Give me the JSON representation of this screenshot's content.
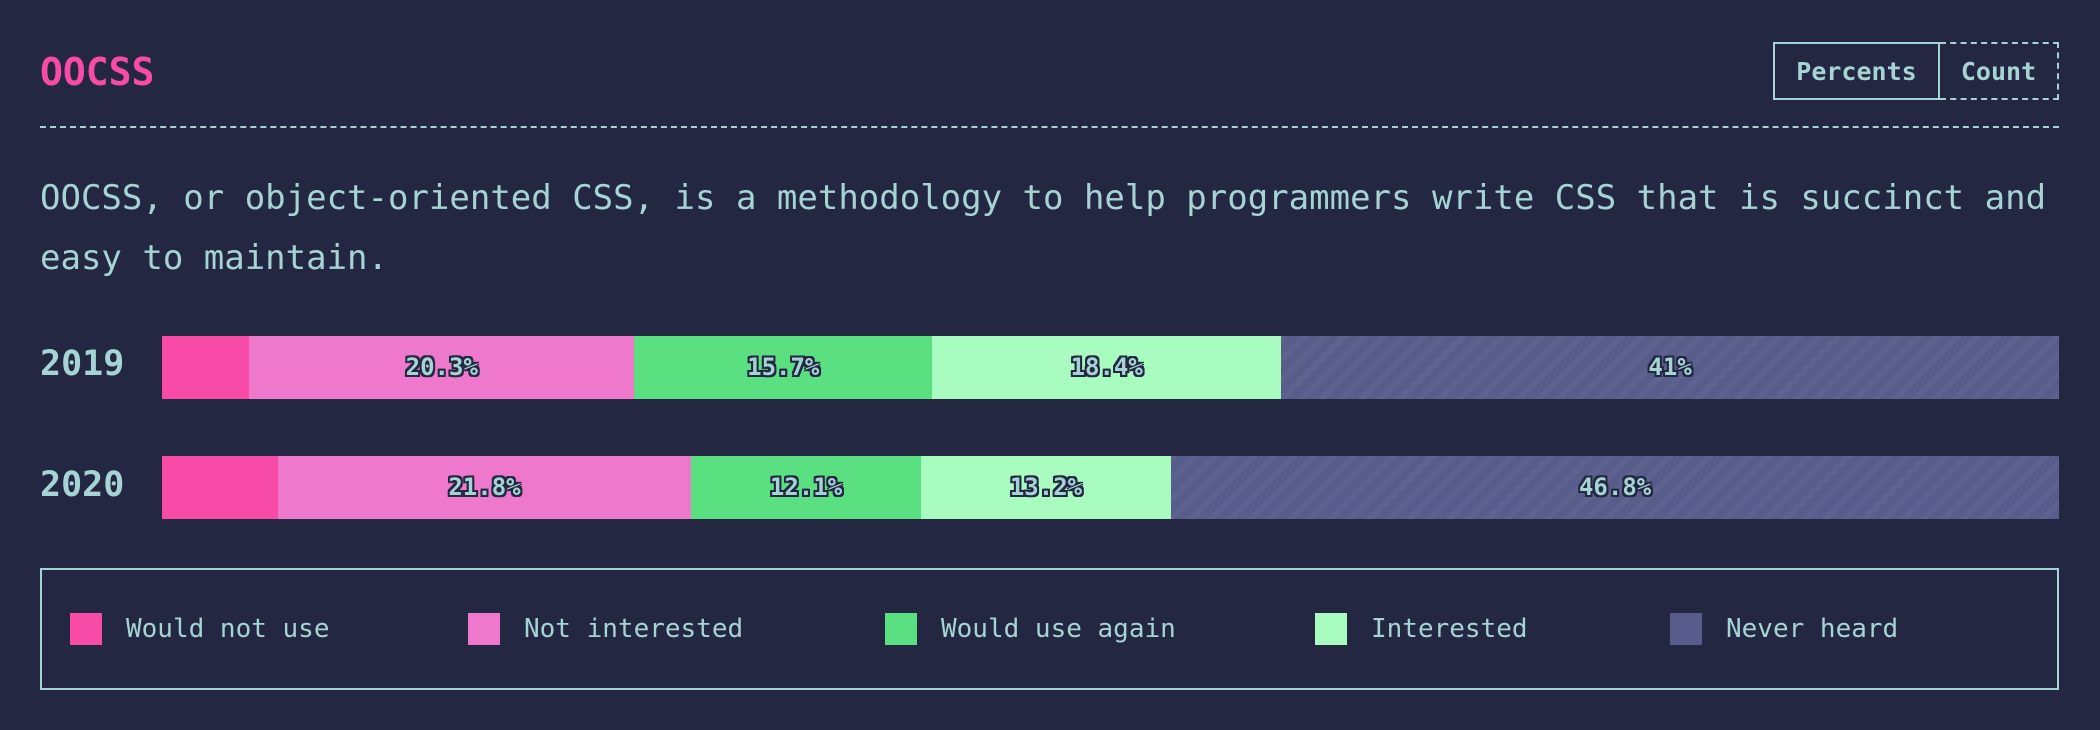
{
  "header": {
    "title": "OOCSS",
    "toggle": {
      "percents_label": "Percents",
      "count_label": "Count",
      "selected": "Percents"
    }
  },
  "description": "OOCSS, or object-oriented CSS, is a methodology to help programmers write CSS that is succinct and easy to maintain.",
  "colors": {
    "background": "#232741",
    "text": "#a6d4d4",
    "title": "#f84ba7"
  },
  "chart_data": {
    "type": "bar",
    "stacked": true,
    "orientation": "horizontal",
    "categories": [
      "2019",
      "2020"
    ],
    "series": [
      {
        "name": "Would not use",
        "color": "#f84ba7",
        "values": [
          4.6,
          6.1
        ],
        "labels": [
          "",
          ""
        ]
      },
      {
        "name": "Not interested",
        "color": "#ee78cb",
        "values": [
          20.3,
          21.8
        ],
        "labels": [
          "20.3%",
          "21.8%"
        ]
      },
      {
        "name": "Would use again",
        "color": "#5be081",
        "values": [
          15.7,
          12.1
        ],
        "labels": [
          "15.7%",
          "12.1%"
        ]
      },
      {
        "name": "Interested",
        "color": "#a9fcc0",
        "values": [
          18.4,
          13.2
        ],
        "labels": [
          "18.4%",
          "13.2%"
        ]
      },
      {
        "name": "Never heard",
        "color": "#575c8a",
        "values": [
          41,
          46.8
        ],
        "labels": [
          "41%",
          "46.8%"
        ]
      }
    ]
  }
}
